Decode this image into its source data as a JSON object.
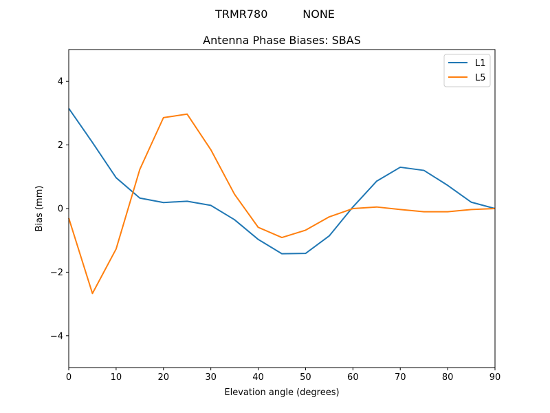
{
  "chart_data": {
    "type": "line",
    "suptitle": "TRMR780          NONE",
    "title": "Antenna Phase Biases: SBAS",
    "xlabel": "Elevation angle (degrees)",
    "ylabel": "Bias (mm)",
    "xlim": [
      0,
      90
    ],
    "ylim": [
      -5,
      5
    ],
    "xticks": [
      0,
      10,
      20,
      30,
      40,
      50,
      60,
      70,
      80,
      90
    ],
    "yticks": [
      -4,
      -2,
      0,
      2,
      4
    ],
    "ytick_labels": [
      "−4",
      "−2",
      "0",
      "2",
      "4"
    ],
    "grid": false,
    "legend": "top-right",
    "x": [
      0,
      5,
      10,
      15,
      20,
      25,
      30,
      35,
      40,
      45,
      50,
      55,
      60,
      65,
      70,
      75,
      80,
      85,
      90
    ],
    "series": [
      {
        "name": "L1",
        "color": "#1f77b4",
        "values": [
          3.15,
          2.08,
          0.97,
          0.33,
          0.19,
          0.23,
          0.1,
          -0.35,
          -0.97,
          -1.42,
          -1.41,
          -0.86,
          0.05,
          0.86,
          1.3,
          1.2,
          0.73,
          0.2,
          0.0
        ]
      },
      {
        "name": "L5",
        "color": "#ff7f0e",
        "values": [
          -0.3,
          -2.67,
          -1.27,
          1.23,
          2.86,
          2.97,
          1.85,
          0.45,
          -0.59,
          -0.91,
          -0.68,
          -0.26,
          0.0,
          0.05,
          -0.03,
          -0.1,
          -0.1,
          -0.03,
          0.0
        ]
      }
    ]
  }
}
